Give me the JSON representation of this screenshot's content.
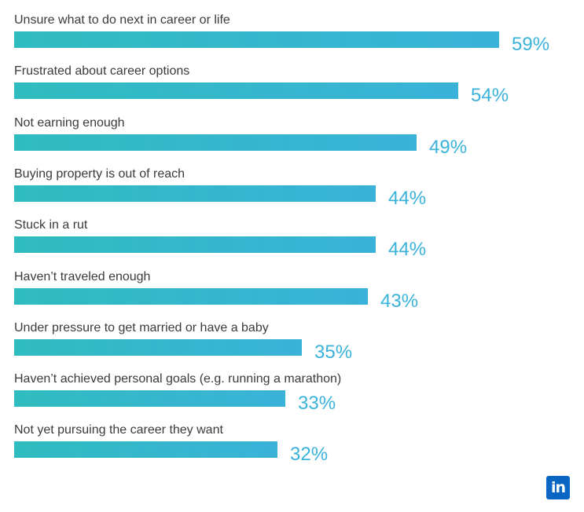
{
  "chart_data": {
    "type": "bar",
    "orientation": "horizontal",
    "categories": [
      "Unsure what to do next in career or life",
      "Frustrated about career options",
      "Not earning enough",
      "Buying property is out of reach",
      "Stuck in a rut",
      "Haven’t traveled enough",
      "Under pressure to get married or have a baby",
      "Haven’t achieved personal goals (e.g. running a marathon)",
      "Not yet pursuing the career they want"
    ],
    "values": [
      59,
      54,
      49,
      44,
      44,
      43,
      35,
      33,
      32
    ],
    "value_labels": [
      "59%",
      "54%",
      "49%",
      "44%",
      "44%",
      "43%",
      "35%",
      "33%",
      "32%"
    ],
    "unit": "%",
    "xlim": [
      0,
      59
    ],
    "grid": false,
    "legend": "none",
    "colors": {
      "bar_start": "#2fbcbf",
      "bar_end": "#3ab2d9",
      "value_text": "#3ab2d9",
      "label_text": "#3a3a3a"
    }
  },
  "logo": {
    "icon": "linkedin-icon",
    "text": "in",
    "color": "#0a66c2"
  }
}
